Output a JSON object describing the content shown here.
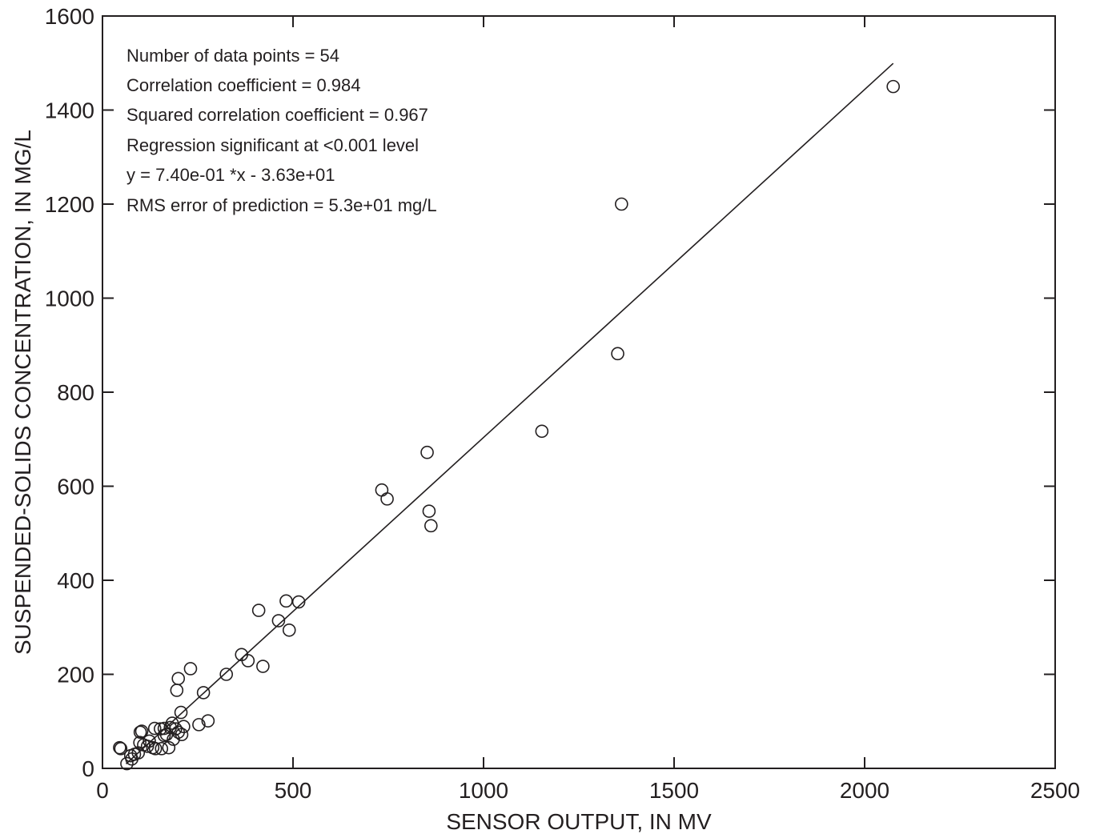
{
  "chart_data": {
    "type": "scatter",
    "xlabel": "SENSOR OUTPUT, IN MV",
    "ylabel": "SUSPENDED-SOLIDS CONCENTRATION, IN MG/L",
    "xlim": [
      0,
      2500
    ],
    "ylim": [
      0,
      1600
    ],
    "xticks": [
      0,
      500,
      1000,
      1500,
      2000,
      2500
    ],
    "yticks": [
      0,
      200,
      400,
      600,
      800,
      1000,
      1200,
      1400,
      1600
    ],
    "xtick_labels": [
      "0",
      "500",
      "1000",
      "1500",
      "2000",
      "2500"
    ],
    "ytick_labels": [
      "0",
      "200",
      "400",
      "600",
      "800",
      "1000",
      "1200",
      "1400",
      "1600"
    ],
    "grid": false,
    "annotations": [
      "Number of data points = 54",
      "Correlation coefficient =  0.984",
      "Squared correlation coefficient = 0.967",
      "Regression significant at <0.001 level",
      "y =  7.40e-01 *x - 3.63e+01",
      "RMS error of prediction =  5.3e+01 mg/L"
    ],
    "regression": {
      "slope": 0.74,
      "intercept": -36.3,
      "x_range": [
        62,
        2075
      ]
    },
    "points": [
      [
        2075,
        1450
      ],
      [
        1362,
        1200
      ],
      [
        1352,
        882
      ],
      [
        1153,
        717
      ],
      [
        852,
        672
      ],
      [
        733,
        592
      ],
      [
        747,
        573
      ],
      [
        857,
        547
      ],
      [
        862,
        516
      ],
      [
        515,
        354
      ],
      [
        482,
        356
      ],
      [
        410,
        336
      ],
      [
        462,
        314
      ],
      [
        490,
        294
      ],
      [
        365,
        242
      ],
      [
        382,
        229
      ],
      [
        421,
        217
      ],
      [
        325,
        200
      ],
      [
        231,
        212
      ],
      [
        199,
        191
      ],
      [
        195,
        166
      ],
      [
        265,
        161
      ],
      [
        206,
        119
      ],
      [
        277,
        101
      ],
      [
        253,
        93
      ],
      [
        213,
        89
      ],
      [
        199,
        77
      ],
      [
        208,
        72
      ],
      [
        183,
        96
      ],
      [
        178,
        87
      ],
      [
        192,
        84
      ],
      [
        168,
        72
      ],
      [
        162,
        85
      ],
      [
        137,
        85
      ],
      [
        152,
        84
      ],
      [
        103,
        79
      ],
      [
        99,
        77
      ],
      [
        186,
        62
      ],
      [
        162,
        70
      ],
      [
        174,
        44
      ],
      [
        155,
        42
      ],
      [
        123,
        58
      ],
      [
        132,
        44
      ],
      [
        139,
        42
      ],
      [
        45,
        44
      ],
      [
        48,
        42
      ],
      [
        94,
        33
      ],
      [
        84,
        30
      ],
      [
        74,
        27
      ],
      [
        77,
        20
      ],
      [
        64,
        10
      ],
      [
        108,
        50
      ],
      [
        118,
        47
      ],
      [
        98,
        55
      ]
    ]
  }
}
